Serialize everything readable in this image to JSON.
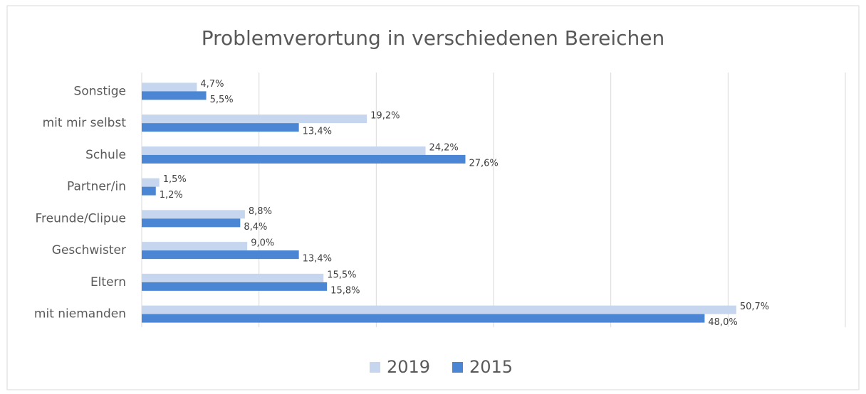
{
  "chart_data": {
    "type": "hbar",
    "title": "Problemverortung in verschiedenen Bereichen",
    "categories": [
      "Sonstige",
      "mit mir selbst",
      "Schule",
      "Partner/in",
      "Freunde/Clipue",
      "Geschwister",
      "Eltern",
      "mit niemanden"
    ],
    "series": [
      {
        "name": "2019",
        "color": "#c5d6ee",
        "values": [
          4.7,
          19.2,
          24.2,
          1.5,
          8.8,
          9.0,
          15.5,
          50.7
        ],
        "value_labels": [
          "4,7%",
          "19,2%",
          "24,2%",
          "1,5%",
          "8,8%",
          "9,0%",
          "15,5%",
          "50,7%"
        ]
      },
      {
        "name": "2015",
        "color": "#4a86d4",
        "values": [
          5.5,
          13.4,
          27.6,
          1.2,
          8.4,
          13.4,
          15.8,
          48.0
        ],
        "value_labels": [
          "5,5%",
          "13,4%",
          "27,6%",
          "1,2%",
          "8,4%",
          "13,4%",
          "15,8%",
          "48,0%"
        ]
      }
    ],
    "xlim": [
      0,
      60
    ],
    "xticks": [
      0,
      10,
      20,
      30,
      40,
      50,
      60
    ],
    "grid": true,
    "legend": "bottom"
  }
}
